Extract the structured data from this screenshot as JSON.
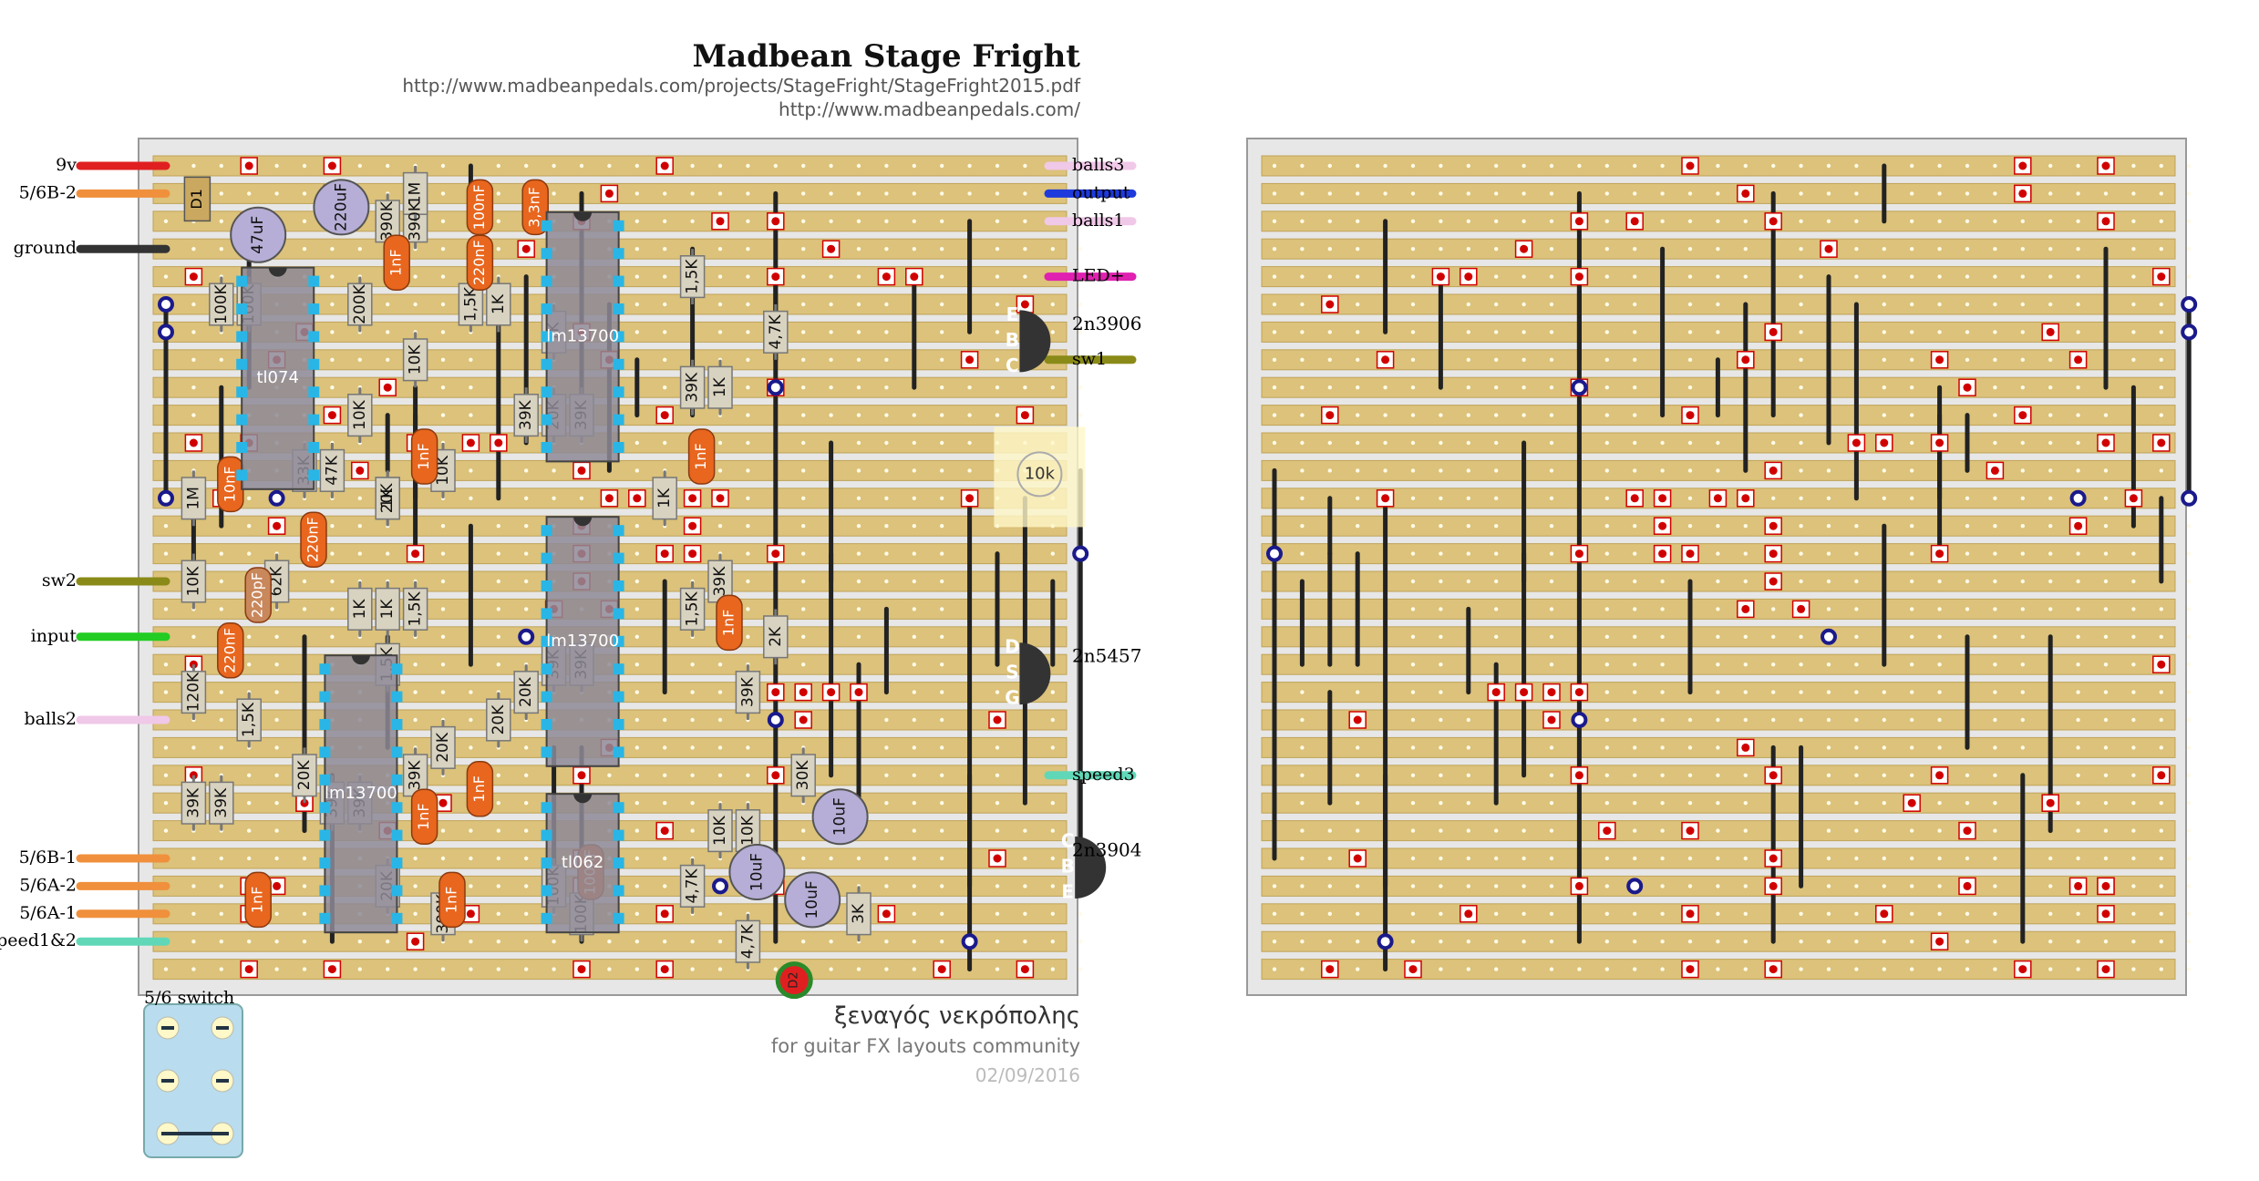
{
  "header": {
    "title": "Madbean Stage Fright",
    "url_pdf": "http://www.madbeanpedals.com/projects/StageFright/StageFright2015.pdf",
    "url_site": "http://www.madbeanpedals.com/"
  },
  "credits": {
    "author": "ξεναγός νεκρόπολης",
    "community": "for guitar FX layouts community",
    "date": "02/09/2016"
  },
  "colors": {
    "board_bg": "#e7e7e7",
    "strip": "#dcc27a",
    "strip_edge": "#bfa35a",
    "cut": "#d10000",
    "link": "#222222",
    "via": "#1a1a8c",
    "cap_film": "#e8661e",
    "cap_ceramic": "#c9875c",
    "cap_elec": "#b6aed6",
    "ic_body": "#8e8a96",
    "resistor": "#d8d2c0",
    "transistor": "#333333",
    "trimmer": "#fff8c8",
    "switch": "#b9dcef"
  },
  "wires": [
    {
      "label": "9v",
      "color": "#e02020"
    },
    {
      "label": "5/6B-2",
      "color": "#f0903c"
    },
    {
      "label": "ground",
      "color": "#333333"
    },
    {
      "label": "sw2",
      "color": "#8a8a18"
    },
    {
      "label": "input",
      "color": "#22cc22"
    },
    {
      "label": "balls2",
      "color": "#f0c8e8"
    },
    {
      "label": "5/6B-1",
      "color": "#f0903c"
    },
    {
      "label": "5/6A-2",
      "color": "#f0903c"
    },
    {
      "label": "5/6A-1",
      "color": "#f0903c"
    },
    {
      "label": "speed1&2",
      "color": "#60d8b8"
    },
    {
      "label": "balls3",
      "color": "#f0c8e8"
    },
    {
      "label": "output",
      "color": "#1e3adc"
    },
    {
      "label": "balls1",
      "color": "#f0c8e8"
    },
    {
      "label": "LED+",
      "color": "#e020b0"
    },
    {
      "label": "sw1",
      "color": "#8a8a18"
    },
    {
      "label": "speed3",
      "color": "#60d8b8"
    }
  ],
  "ics": [
    "tl074",
    "lm13700",
    "lm13700",
    "lm13700",
    "tl062"
  ],
  "transistors": [
    {
      "name": "2n3906",
      "pins": [
        "E",
        "B",
        "C"
      ]
    },
    {
      "name": "2n5457",
      "pins": [
        "D",
        "S",
        "G"
      ]
    },
    {
      "name": "2n3904",
      "pins": [
        "C",
        "B",
        "E"
      ]
    }
  ],
  "trimmer": "10k",
  "diodes": [
    "D1",
    "D2"
  ],
  "switch_label": "5/6 switch",
  "resistors": [
    "100K",
    "100K",
    "1M",
    "10K",
    "120K",
    "39K",
    "39K",
    "1,5K",
    "62K",
    "20K",
    "200K",
    "390K",
    "390K",
    "10K",
    "1K",
    "10K",
    "20K",
    "1M",
    "1,5K",
    "1K",
    "39K",
    "20K",
    "39K",
    "39K",
    "33K",
    "47K",
    "1K",
    "1K",
    "1,5K",
    "1,5K",
    "10K",
    "20K",
    "20K",
    "20K",
    "39K",
    "39K",
    "39K",
    "300K",
    "100K",
    "20K",
    "100K",
    "39K",
    "1,5K",
    "1K",
    "39K",
    "1K",
    "1,5K",
    "1K",
    "39K",
    "4,7K",
    "39K",
    "2K",
    "30K",
    "10K",
    "10K",
    "4,7K",
    "4,7K",
    "3K"
  ],
  "caps": [
    "47uF",
    "220uF",
    "1nF",
    "100nF",
    "220nF",
    "3,3nF",
    "10nF",
    "220nF",
    "220pF",
    "220nF",
    "1nF",
    "1nF",
    "1nF",
    "1nF",
    "100nF",
    "1nF",
    "1nF",
    "1nF",
    "10uF",
    "10uF",
    "10uF"
  ]
}
